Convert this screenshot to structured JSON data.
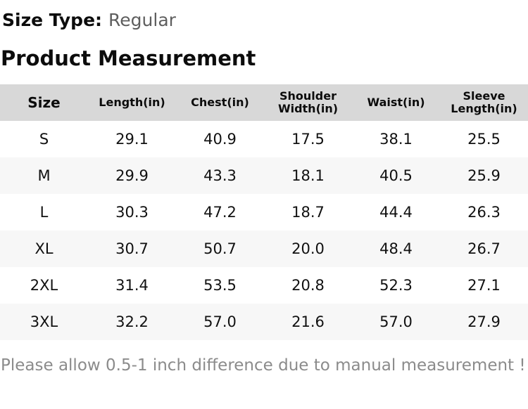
{
  "header": {
    "size_type_label": "Size Type:",
    "size_type_value": "Regular",
    "section_title": "Product Measurement"
  },
  "table": {
    "columns": [
      "Size",
      "Length(in)",
      "Chest(in)",
      "Shoulder Width(in)",
      "Waist(in)",
      "Sleeve Length(in)"
    ],
    "rows": [
      [
        "S",
        "29.1",
        "40.9",
        "17.5",
        "38.1",
        "25.5"
      ],
      [
        "M",
        "29.9",
        "43.3",
        "18.1",
        "40.5",
        "25.9"
      ],
      [
        "L",
        "30.3",
        "47.2",
        "18.7",
        "44.4",
        "26.3"
      ],
      [
        "XL",
        "30.7",
        "50.7",
        "20.0",
        "48.4",
        "26.7"
      ],
      [
        "2XL",
        "31.4",
        "53.5",
        "20.8",
        "52.3",
        "27.1"
      ],
      [
        "3XL",
        "32.2",
        "57.0",
        "21.6",
        "57.0",
        "27.9"
      ]
    ]
  },
  "footer": {
    "note": "Please allow 0.5-1 inch difference due to manual measurement !"
  },
  "colors": {
    "header_bg": "#d8d8d8",
    "stripe_bg": "#f7f7f7",
    "muted_text": "#5e5e5e",
    "note_text": "#8b8b8b"
  }
}
